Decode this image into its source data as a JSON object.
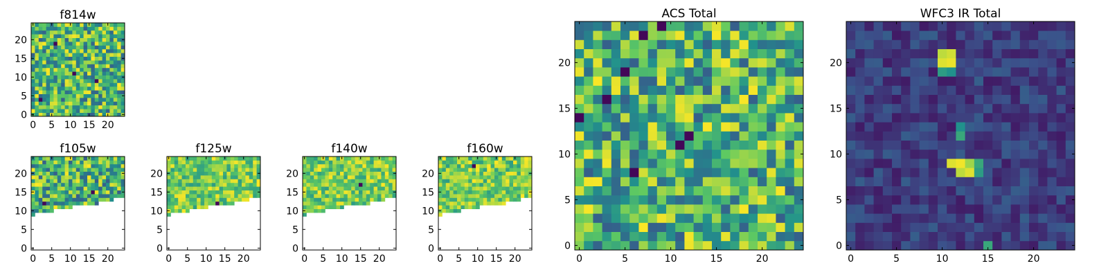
{
  "figure": {
    "background": "#ffffff",
    "colormap": [
      "#440154",
      "#3b528b",
      "#21918c",
      "#5ec962",
      "#fde725"
    ]
  },
  "chart_data": [
    {
      "id": "f814w",
      "type": "heatmap",
      "title": "f814w",
      "grid": [
        25,
        25
      ],
      "xlim": [
        0,
        24
      ],
      "ylim": [
        0,
        24
      ],
      "xticks": [
        0,
        5,
        10,
        15,
        20
      ],
      "yticks": [
        0,
        5,
        10,
        15,
        20
      ],
      "value_range": [
        0,
        1
      ],
      "palette": "bright",
      "mask": "none",
      "hot_spots": [
        [
          11,
          11
        ],
        [
          17,
          9
        ],
        [
          6,
          19
        ],
        [
          2,
          4
        ]
      ],
      "seed": 1
    },
    {
      "id": "f105w",
      "type": "heatmap",
      "title": "f105w",
      "grid": [
        25,
        25
      ],
      "xlim": [
        0,
        24
      ],
      "ylim": [
        0,
        24
      ],
      "xticks": [
        0,
        5,
        10,
        15,
        20
      ],
      "yticks": [
        0,
        5,
        10,
        15,
        20
      ],
      "value_range": [
        0,
        1
      ],
      "palette": "bright",
      "mask": "lower",
      "hot_spots": [
        [
          3,
          12
        ],
        [
          16,
          15
        ]
      ],
      "seed": 2
    },
    {
      "id": "f125w",
      "type": "heatmap",
      "title": "f125w",
      "grid": [
        25,
        25
      ],
      "xlim": [
        0,
        24
      ],
      "ylim": [
        0,
        24
      ],
      "xticks": [
        0,
        5,
        10,
        15,
        20
      ],
      "yticks": [
        0,
        5,
        10,
        15,
        20
      ],
      "value_range": [
        0,
        1
      ],
      "palette": "pale",
      "mask": "lower",
      "hot_spots": [
        [
          13,
          12
        ]
      ],
      "seed": 3
    },
    {
      "id": "f140w",
      "type": "heatmap",
      "title": "f140w",
      "grid": [
        25,
        25
      ],
      "xlim": [
        0,
        24
      ],
      "ylim": [
        0,
        24
      ],
      "xticks": [
        0,
        5,
        10,
        15,
        20
      ],
      "yticks": [
        0,
        5,
        10,
        15,
        20
      ],
      "value_range": [
        0,
        1
      ],
      "palette": "pale",
      "mask": "lower",
      "hot_spots": [
        [
          15,
          17
        ]
      ],
      "seed": 4
    },
    {
      "id": "f160w",
      "type": "heatmap",
      "title": "f160w",
      "grid": [
        25,
        25
      ],
      "xlim": [
        0,
        24
      ],
      "ylim": [
        0,
        24
      ],
      "xticks": [
        0,
        5,
        10,
        15,
        20
      ],
      "yticks": [
        0,
        5,
        10,
        15,
        20
      ],
      "value_range": [
        0,
        1
      ],
      "palette": "pale",
      "mask": "lower",
      "hot_spots": [
        [
          9,
          22
        ]
      ],
      "seed": 5
    },
    {
      "id": "acs_total",
      "type": "heatmap",
      "title": "ACS Total",
      "grid": [
        25,
        25
      ],
      "xlim": [
        0,
        24
      ],
      "ylim": [
        0,
        24
      ],
      "xticks": [
        0,
        5,
        10,
        15,
        20
      ],
      "yticks": [
        0,
        5,
        10,
        15,
        20
      ],
      "value_range": [
        0,
        1
      ],
      "palette": "bright",
      "mask": "none",
      "hot_spots": [
        [
          6,
          8
        ],
        [
          3,
          16
        ],
        [
          11,
          11
        ],
        [
          12,
          12
        ],
        [
          5,
          19
        ],
        [
          9,
          24
        ],
        [
          0,
          14
        ],
        [
          7,
          23
        ]
      ],
      "seed": 6
    },
    {
      "id": "wfc3_ir_total",
      "type": "heatmap",
      "title": "WFC3 IR Total",
      "grid": [
        25,
        25
      ],
      "xlim": [
        0,
        24
      ],
      "ylim": [
        0,
        24
      ],
      "xticks": [
        0,
        5,
        10,
        15,
        20
      ],
      "yticks": [
        0,
        5,
        10,
        15,
        20
      ],
      "value_range": [
        0,
        1
      ],
      "palette": "dark",
      "mask": "none",
      "bright_cells": [
        [
          10,
          20,
          0.95
        ],
        [
          11,
          20,
          0.97
        ],
        [
          10,
          21,
          0.9
        ],
        [
          11,
          21,
          0.93
        ],
        [
          10,
          19,
          0.55
        ],
        [
          11,
          19,
          0.5
        ],
        [
          12,
          12,
          0.6
        ],
        [
          12,
          13,
          0.5
        ],
        [
          11,
          9,
          0.95
        ],
        [
          12,
          9,
          0.98
        ],
        [
          13,
          9,
          0.85
        ],
        [
          12,
          8,
          0.9
        ],
        [
          13,
          8,
          0.95
        ],
        [
          14,
          9,
          0.6
        ],
        [
          14,
          8,
          0.55
        ],
        [
          15,
          0,
          0.6
        ]
      ],
      "seed": 7
    }
  ]
}
